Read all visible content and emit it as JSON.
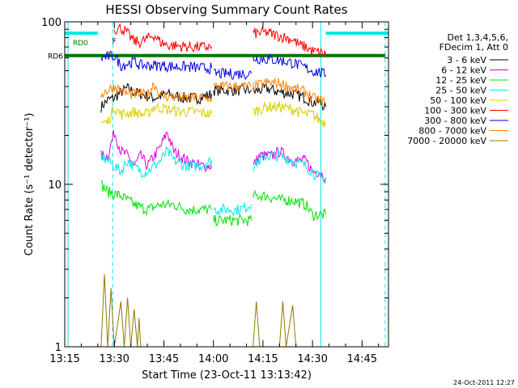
{
  "chart_data": {
    "type": "line",
    "title": "HESSI Observing Summary Count Rates",
    "xlabel": "Start Time (23-Oct-11 13:13:42)",
    "ylabel": "Count Rate (s⁻¹ detector⁻¹)",
    "xlim": [
      795,
      893
    ],
    "ylim": [
      1,
      100
    ],
    "yscale": "log",
    "x_ticks": [
      795,
      810,
      825,
      840,
      855,
      870,
      885
    ],
    "x_tick_labels": [
      "13:15",
      "13:30",
      "13:45",
      "14:00",
      "14:15",
      "14:30",
      "14:45"
    ],
    "y_ticks": [
      1,
      10,
      100
    ],
    "y_tick_labels": [
      "1",
      "10",
      "100"
    ],
    "legend": {
      "position": "right",
      "header": [
        "Det 1,3,4,5,6,",
        "FDecim 1, Att 0"
      ],
      "entries": [
        {
          "label": "3 - 6 keV",
          "color": "#000000"
        },
        {
          "label": "6 - 12 keV",
          "color": "#e000e0"
        },
        {
          "label": "12 - 25 keV",
          "color": "#00e000"
        },
        {
          "label": "25 - 50 keV",
          "color": "#00e8e8"
        },
        {
          "label": "50 - 100 keV",
          "color": "#d8d000"
        },
        {
          "label": "100 - 300 keV",
          "color": "#ff0000"
        },
        {
          "label": "300 - 800 keV",
          "color": "#0000e0"
        },
        {
          "label": "800 - 7000 keV",
          "color": "#ff8000"
        },
        {
          "label": "7000 - 20000 keV",
          "color": "#8c7a00"
        }
      ]
    },
    "series": [
      {
        "name": "3 - 6 keV",
        "color": "#000000",
        "segments": [
          [
            [
              806,
              30
            ],
            [
              808,
              33
            ],
            [
              810,
              34
            ],
            [
              812,
              37
            ],
            [
              814,
              39
            ],
            [
              816,
              37
            ],
            [
              818,
              36
            ],
            [
              820,
              35
            ],
            [
              822,
              34
            ],
            [
              826,
              36
            ],
            [
              828,
              35
            ],
            [
              832,
              34
            ],
            [
              836,
              34
            ],
            [
              839.5,
              36
            ]
          ],
          [
            [
              840,
              38
            ],
            [
              842,
              38
            ],
            [
              848,
              38
            ],
            [
              851.5,
              38
            ]
          ],
          [
            [
              852,
              37
            ],
            [
              856,
              39
            ],
            [
              860,
              37
            ],
            [
              864,
              36
            ],
            [
              868,
              34
            ],
            [
              870,
              32
            ],
            [
              872,
              32
            ],
            [
              874,
              30
            ]
          ]
        ]
      },
      {
        "name": "6 - 12 keV",
        "color": "#e000e0",
        "segments": [
          [
            [
              806,
              15
            ],
            [
              808,
              15
            ],
            [
              810,
              21
            ],
            [
              812,
              16
            ],
            [
              814,
              15
            ],
            [
              816,
              13
            ],
            [
              818,
              15
            ],
            [
              820,
              13
            ],
            [
              824,
              17
            ],
            [
              826,
              21
            ],
            [
              828,
              16
            ],
            [
              830,
              15
            ],
            [
              832,
              14
            ],
            [
              836,
              13
            ],
            [
              839.5,
              13
            ]
          ],
          [
            [
              852,
              13
            ],
            [
              854,
              15
            ],
            [
              858,
              15
            ],
            [
              860,
              16
            ],
            [
              864,
              14
            ],
            [
              868,
              14
            ],
            [
              870,
              12
            ],
            [
              872,
              12
            ],
            [
              874,
              11
            ]
          ]
        ]
      },
      {
        "name": "12 - 25 keV",
        "color": "#00e000",
        "segments": [
          [
            [
              806,
              10
            ],
            [
              808,
              9
            ],
            [
              812,
              8.5
            ],
            [
              816,
              7.5
            ],
            [
              820,
              7
            ],
            [
              824,
              7.5
            ],
            [
              828,
              7.5
            ],
            [
              832,
              7
            ],
            [
              836,
              7
            ],
            [
              839.5,
              7
            ]
          ],
          [
            [
              840,
              6
            ],
            [
              842,
              6
            ],
            [
              848,
              6
            ],
            [
              851.5,
              6
            ]
          ],
          [
            [
              852,
              8.5
            ],
            [
              856,
              8.5
            ],
            [
              860,
              8
            ],
            [
              864,
              8
            ],
            [
              868,
              7.5
            ],
            [
              870,
              6.5
            ],
            [
              872,
              6.5
            ],
            [
              874,
              6.5
            ]
          ]
        ]
      },
      {
        "name": "25 - 50 keV",
        "color": "#00e8e8",
        "segments": [
          [
            [
              806,
              15
            ],
            [
              808,
              14
            ],
            [
              812,
              12
            ],
            [
              814,
              14
            ],
            [
              818,
              12
            ],
            [
              820,
              12
            ],
            [
              824,
              14
            ],
            [
              826,
              16
            ],
            [
              828,
              14
            ],
            [
              832,
              13
            ],
            [
              836,
              13
            ],
            [
              839.5,
              14
            ]
          ],
          [
            [
              840,
              7
            ],
            [
              844,
              7
            ],
            [
              848,
              7
            ],
            [
              851.5,
              7.5
            ]
          ],
          [
            [
              852,
              13
            ],
            [
              856,
              15
            ],
            [
              860,
              15
            ],
            [
              864,
              14
            ],
            [
              868,
              13
            ],
            [
              870,
              12
            ],
            [
              872,
              11
            ],
            [
              874,
              11
            ]
          ]
        ]
      },
      {
        "name": "50 - 100 keV",
        "color": "#d8d000",
        "segments": [
          [
            [
              806,
              24
            ],
            [
              808,
              24
            ],
            [
              810,
              30
            ],
            [
              812,
              27
            ],
            [
              816,
              28
            ],
            [
              818,
              27
            ],
            [
              820,
              27
            ],
            [
              822,
              30
            ],
            [
              826,
              29
            ],
            [
              830,
              28
            ],
            [
              834,
              28
            ],
            [
              839.5,
              27
            ]
          ],
          [
            [
              852,
              28
            ],
            [
              856,
              30
            ],
            [
              860,
              30
            ],
            [
              864,
              29
            ],
            [
              868,
              27
            ],
            [
              870,
              27
            ],
            [
              872,
              25
            ],
            [
              874,
              24
            ]
          ]
        ]
      },
      {
        "name": "100 - 300 keV",
        "color": "#ff0000",
        "segments": [
          [
            [
              810,
              90
            ],
            [
              812,
              92
            ],
            [
              814,
              85
            ],
            [
              816,
              76
            ],
            [
              818,
              75
            ],
            [
              822,
              83
            ],
            [
              824,
              75
            ],
            [
              826,
              72
            ],
            [
              830,
              71
            ],
            [
              834,
              70
            ],
            [
              839.5,
              70
            ]
          ],
          [
            [
              852,
              85
            ],
            [
              856,
              86
            ],
            [
              860,
              82
            ],
            [
              864,
              78
            ],
            [
              866,
              72
            ],
            [
              868,
              70
            ],
            [
              870,
              66
            ],
            [
              872,
              65
            ],
            [
              874,
              63
            ]
          ]
        ]
      },
      {
        "name": "300 - 800 keV",
        "color": "#0000e0",
        "segments": [
          [
            [
              806,
              60
            ],
            [
              810,
              62
            ],
            [
              812,
              54
            ],
            [
              816,
              57
            ],
            [
              818,
              54
            ],
            [
              820,
              54
            ],
            [
              824,
              54
            ],
            [
              828,
              53
            ],
            [
              832,
              53
            ],
            [
              836,
              52
            ],
            [
              839.5,
              52
            ]
          ],
          [
            [
              840,
              48
            ],
            [
              844,
              48
            ],
            [
              848,
              48
            ],
            [
              851.5,
              48
            ]
          ],
          [
            [
              852,
              60
            ],
            [
              856,
              59
            ],
            [
              860,
              58
            ],
            [
              864,
              56
            ],
            [
              868,
              52
            ],
            [
              870,
              50
            ],
            [
              872,
              49
            ],
            [
              874,
              47
            ]
          ]
        ]
      },
      {
        "name": "800 - 7000 keV",
        "color": "#ff8000",
        "segments": [
          [
            [
              806,
              36
            ],
            [
              810,
              40
            ],
            [
              814,
              36
            ],
            [
              818,
              36
            ],
            [
              820,
              35
            ],
            [
              822,
              42
            ],
            [
              824,
              35
            ],
            [
              826,
              35
            ],
            [
              830,
              34
            ],
            [
              834,
              34
            ],
            [
              839.5,
              34
            ]
          ],
          [
            [
              840,
              40
            ],
            [
              844,
              40
            ],
            [
              848,
              40
            ],
            [
              851.5,
              40
            ]
          ],
          [
            [
              852,
              40
            ],
            [
              856,
              42
            ],
            [
              860,
              42
            ],
            [
              864,
              39
            ],
            [
              868,
              37
            ],
            [
              870,
              34
            ],
            [
              872,
              33
            ],
            [
              874,
              32
            ]
          ]
        ]
      },
      {
        "name": "7000 - 20000 keV",
        "color": "#8c7a00",
        "segments": [
          [
            [
              806,
              1
            ],
            [
              807,
              2.8
            ],
            [
              808,
              1
            ],
            [
              809,
              2.3
            ],
            [
              810,
              1
            ],
            [
              812,
              1.9
            ],
            [
              813,
              1
            ],
            [
              814,
              2
            ],
            [
              815,
              1
            ],
            [
              816,
              1.7
            ],
            [
              817,
              1
            ],
            [
              817.5,
              1.5
            ],
            [
              818,
              1
            ]
          ],
          [
            [
              852,
              1
            ],
            [
              853,
              1.9
            ],
            [
              854,
              1
            ]
          ],
          [
            [
              860,
              1
            ],
            [
              861,
              1.9
            ],
            [
              862,
              1
            ],
            [
              864,
              1.8
            ],
            [
              865,
              1
            ]
          ]
        ]
      }
    ],
    "state_bars": [
      {
        "label": "RD0",
        "color": "#00e8e8",
        "y": 85,
        "x_ranges": [
          [
            795,
            805
          ],
          [
            874,
            893
          ]
        ]
      },
      {
        "label": "RD6",
        "color": "#007800",
        "y": 62,
        "x_ranges": [
          [
            795,
            892
          ]
        ]
      }
    ],
    "state_markers": [
      {
        "label": "F",
        "color": "#ff0000",
        "x": 810,
        "y": 77
      }
    ],
    "vertical_markers": [
      {
        "x": 796,
        "color": "#00e8e8",
        "style": "solid"
      },
      {
        "x": 809.5,
        "color": "#00e8e8",
        "style": "dashed"
      },
      {
        "x": 872.5,
        "color": "#00e8e8",
        "style": "solid"
      },
      {
        "x": 892,
        "color": "#00e8e8",
        "style": "dashed"
      }
    ],
    "footer": "24-Oct-2011 12:27"
  }
}
